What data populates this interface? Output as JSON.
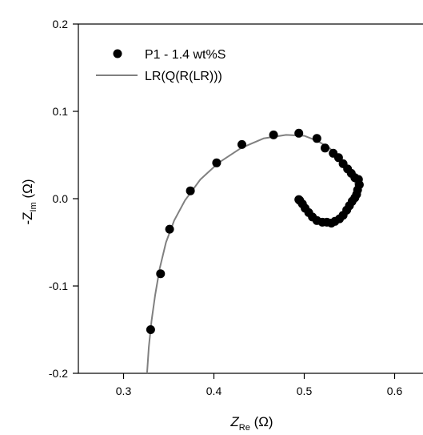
{
  "chart_data": {
    "type": "scatter",
    "xlabel": "Z",
    "xlabel_sub": "Re",
    "xlabel_unit": " (Ω)",
    "ylabel_prefix": "-Z",
    "ylabel_sub": "Im",
    "ylabel_unit": " (Ω)",
    "xlim": [
      0.25,
      0.65
    ],
    "ylim": [
      -0.2,
      0.2
    ],
    "xticks": [
      0.3,
      0.4,
      0.5,
      0.6
    ],
    "xtick_labels": [
      "0.3",
      "0.4",
      "0.5",
      "0.6"
    ],
    "yticks": [
      -0.2,
      -0.1,
      0.0,
      0.1,
      0.2
    ],
    "ytick_labels": [
      "-0.2",
      "-0.1",
      "0.0",
      "0.1",
      "0.2"
    ],
    "grid": false,
    "legend_position": "top-left",
    "series": [
      {
        "name": "P1 - 1.4 wt%S",
        "kind": "markers",
        "color": "#000000",
        "points": [
          [
            0.33,
            -0.15
          ],
          [
            0.341,
            -0.086
          ],
          [
            0.351,
            -0.035
          ],
          [
            0.374,
            0.009
          ],
          [
            0.403,
            0.041
          ],
          [
            0.431,
            0.062
          ],
          [
            0.466,
            0.073
          ],
          [
            0.494,
            0.075
          ],
          [
            0.514,
            0.069
          ],
          [
            0.523,
            0.058
          ],
          [
            0.532,
            0.052
          ],
          [
            0.538,
            0.047
          ],
          [
            0.543,
            0.04
          ],
          [
            0.548,
            0.034
          ],
          [
            0.552,
            0.029
          ],
          [
            0.556,
            0.024
          ],
          [
            0.56,
            0.022
          ],
          [
            0.561,
            0.016
          ],
          [
            0.559,
            0.01
          ],
          [
            0.558,
            0.005
          ],
          [
            0.556,
            0.001
          ],
          [
            0.553,
            -0.003
          ],
          [
            0.55,
            -0.008
          ],
          [
            0.547,
            -0.013
          ],
          [
            0.543,
            -0.019
          ],
          [
            0.539,
            -0.023
          ],
          [
            0.534,
            -0.026
          ],
          [
            0.53,
            -0.028
          ],
          [
            0.525,
            -0.027
          ],
          [
            0.52,
            -0.027
          ],
          [
            0.514,
            -0.025
          ],
          [
            0.509,
            -0.021
          ],
          [
            0.505,
            -0.016
          ],
          [
            0.501,
            -0.011
          ],
          [
            0.498,
            -0.006
          ],
          [
            0.495,
            -0.002
          ],
          [
            0.494,
            -0.001
          ]
        ]
      },
      {
        "name": "LR(Q(R(LR)))",
        "kind": "line",
        "color": "#808080",
        "points": [
          [
            0.326,
            -0.2
          ],
          [
            0.328,
            -0.17
          ],
          [
            0.331,
            -0.14
          ],
          [
            0.335,
            -0.11
          ],
          [
            0.34,
            -0.08
          ],
          [
            0.347,
            -0.05
          ],
          [
            0.356,
            -0.025
          ],
          [
            0.368,
            -0.002
          ],
          [
            0.385,
            0.022
          ],
          [
            0.405,
            0.041
          ],
          [
            0.43,
            0.058
          ],
          [
            0.455,
            0.069
          ],
          [
            0.48,
            0.073
          ],
          [
            0.5,
            0.072
          ],
          [
            0.515,
            0.066
          ],
          [
            0.528,
            0.058
          ],
          [
            0.54,
            0.046
          ],
          [
            0.55,
            0.033
          ],
          [
            0.556,
            0.02
          ],
          [
            0.558,
            0.008
          ],
          [
            0.556,
            -0.004
          ],
          [
            0.55,
            -0.015
          ],
          [
            0.542,
            -0.024
          ],
          [
            0.532,
            -0.029
          ],
          [
            0.522,
            -0.029
          ],
          [
            0.512,
            -0.025
          ],
          [
            0.504,
            -0.018
          ],
          [
            0.498,
            -0.01
          ],
          [
            0.494,
            -0.002
          ]
        ]
      }
    ]
  }
}
